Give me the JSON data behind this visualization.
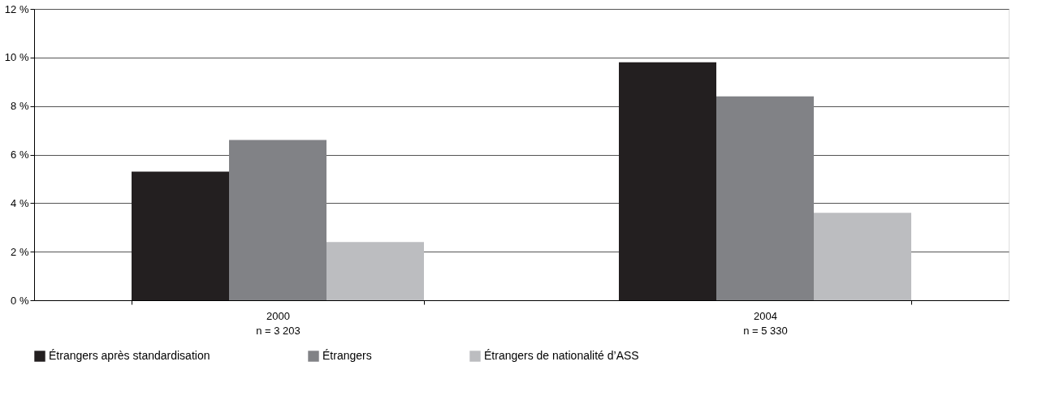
{
  "chart_data": {
    "type": "bar",
    "categories": [
      "2000\nn = 3 203",
      "2004\nn = 5 330"
    ],
    "series": [
      {
        "name": "Étrangers après standardisation",
        "color": "#231f20",
        "values": [
          5.3,
          9.8
        ]
      },
      {
        "name": "Étrangers",
        "color": "#818286",
        "values": [
          6.6,
          8.4
        ]
      },
      {
        "name": "Étrangers de nationalité d’ASS",
        "color": "#bcbdc0",
        "values": [
          2.4,
          3.6
        ]
      }
    ],
    "ylim": [
      0,
      12
    ],
    "yticks": [
      {
        "value": 0,
        "label": "0 %"
      },
      {
        "value": 2,
        "label": "2 %"
      },
      {
        "value": 4,
        "label": "4 %"
      },
      {
        "value": 6,
        "label": "6 %"
      },
      {
        "value": 8,
        "label": "8 %"
      },
      {
        "value": 10,
        "label": "10 %"
      },
      {
        "value": 12,
        "label": "12 %"
      }
    ],
    "grid": "y",
    "legend": "bottom"
  }
}
